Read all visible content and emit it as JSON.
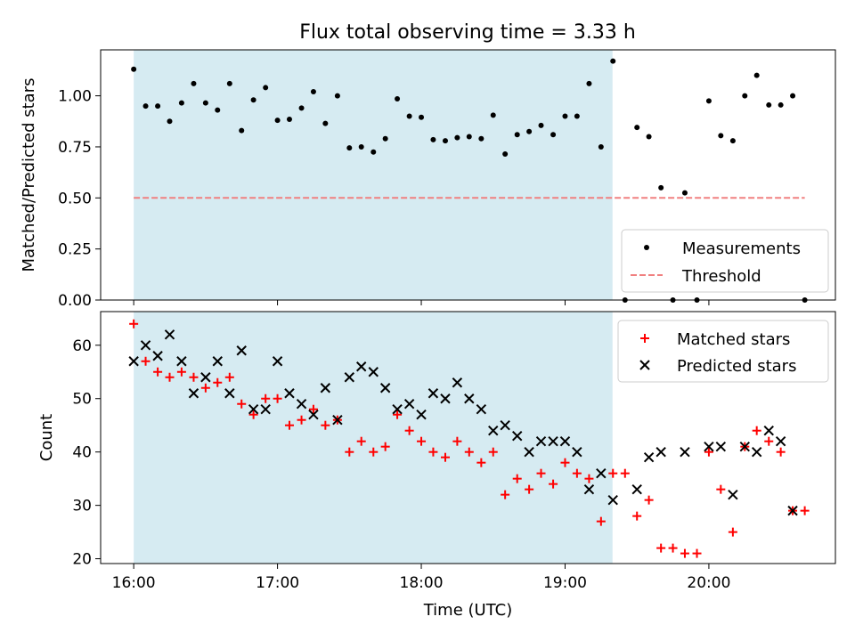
{
  "chart_data": [
    {
      "type": "scatter",
      "title": "Flux total observing time = 3.33 h",
      "xlabel": "",
      "ylabel": "Matched/Predicted stars",
      "xlim": [
        15.77,
        20.88
      ],
      "ylim": [
        0.0,
        1.225
      ],
      "yticks": [
        0.0,
        0.25,
        0.5,
        0.75,
        1.0
      ],
      "ytick_labels": [
        "0.00",
        "0.25",
        "0.50",
        "0.75",
        "1.00"
      ],
      "shaded_region": {
        "x0": 16.0,
        "x1": 19.33,
        "color": "#add8e6"
      },
      "legend": {
        "position": "lower right",
        "entries": [
          {
            "label": "Measurements",
            "style": "dot",
            "color": "#000000"
          },
          {
            "label": "Threshold",
            "style": "dashed-line",
            "color": "#f08080"
          }
        ]
      },
      "series": [
        {
          "name": "Measurements",
          "color": "#000000",
          "marker": "dot",
          "x": [
            16.0,
            16.083,
            16.167,
            16.25,
            16.333,
            16.417,
            16.5,
            16.583,
            16.667,
            16.75,
            16.833,
            16.917,
            17.0,
            17.083,
            17.167,
            17.25,
            17.333,
            17.417,
            17.5,
            17.583,
            17.667,
            17.75,
            17.833,
            17.917,
            18.0,
            18.083,
            18.167,
            18.25,
            18.333,
            18.417,
            18.5,
            18.583,
            18.667,
            18.75,
            18.833,
            18.917,
            19.0,
            19.083,
            19.167,
            19.25,
            19.333,
            19.417,
            19.5,
            19.583,
            19.667,
            19.75,
            19.833,
            19.917,
            20.0,
            20.083,
            20.167,
            20.25,
            20.333,
            20.417,
            20.5,
            20.583,
            20.667
          ],
          "y": [
            1.13,
            0.95,
            0.95,
            0.875,
            0.965,
            1.06,
            0.965,
            0.93,
            1.06,
            0.83,
            0.98,
            1.04,
            0.88,
            0.885,
            0.94,
            1.02,
            0.865,
            1.0,
            0.745,
            0.75,
            0.725,
            0.79,
            0.985,
            0.9,
            0.895,
            0.785,
            0.78,
            0.795,
            0.8,
            0.79,
            0.905,
            0.715,
            0.81,
            0.825,
            0.855,
            0.81,
            0.9,
            0.9,
            1.06,
            0.75,
            1.17,
            0.0,
            0.845,
            0.8,
            0.55,
            0.0,
            0.525,
            0.0,
            0.975,
            0.805,
            0.78,
            1.0,
            1.1,
            0.955,
            0.955,
            1.0,
            0.0
          ]
        },
        {
          "name": "Threshold",
          "color": "#f08080",
          "style": "dashed",
          "x": [
            16.0,
            20.667
          ],
          "y": [
            0.5,
            0.5
          ]
        }
      ]
    },
    {
      "type": "scatter",
      "title": "",
      "xlabel": "Time (UTC)",
      "ylabel": "Count",
      "xlim": [
        15.77,
        20.88
      ],
      "ylim": [
        19.1,
        66.3
      ],
      "yticks": [
        20,
        30,
        40,
        50,
        60
      ],
      "ytick_labels": [
        "20",
        "30",
        "40",
        "50",
        "60"
      ],
      "xticks": [
        16,
        17,
        18,
        19,
        20
      ],
      "xtick_labels": [
        "16:00",
        "17:00",
        "18:00",
        "19:00",
        "20:00"
      ],
      "shaded_region": {
        "x0": 16.0,
        "x1": 19.33,
        "color": "#add8e6"
      },
      "legend": {
        "position": "upper right",
        "entries": [
          {
            "label": "Matched stars",
            "style": "plus",
            "color": "#ff0000"
          },
          {
            "label": "Predicted stars",
            "style": "x",
            "color": "#000000"
          }
        ]
      },
      "series": [
        {
          "name": "Matched stars",
          "color": "#ff0000",
          "marker": "plus",
          "x": [
            16.0,
            16.083,
            16.167,
            16.25,
            16.333,
            16.417,
            16.5,
            16.583,
            16.667,
            16.75,
            16.833,
            16.917,
            17.0,
            17.083,
            17.167,
            17.25,
            17.333,
            17.417,
            17.5,
            17.583,
            17.667,
            17.75,
            17.833,
            17.917,
            18.0,
            18.083,
            18.167,
            18.25,
            18.333,
            18.417,
            18.5,
            18.583,
            18.667,
            18.75,
            18.833,
            18.917,
            19.0,
            19.083,
            19.167,
            19.25,
            19.333,
            19.417,
            19.5,
            19.583,
            19.667,
            19.75,
            19.833,
            19.917,
            20.0,
            20.083,
            20.167,
            20.25,
            20.333,
            20.417,
            20.5,
            20.583,
            20.667
          ],
          "y": [
            64,
            57,
            55,
            54,
            55,
            54,
            52,
            53,
            54,
            49,
            47,
            50,
            50,
            45,
            46,
            48,
            45,
            46,
            40,
            42,
            40,
            41,
            47,
            44,
            42,
            40,
            39,
            42,
            40,
            38,
            40,
            32,
            35,
            33,
            36,
            34,
            38,
            36,
            35,
            27,
            36,
            36,
            28,
            31,
            22,
            22,
            21,
            21,
            40,
            33,
            25,
            41,
            44,
            42,
            40,
            29,
            29
          ]
        },
        {
          "name": "Predicted stars",
          "color": "#000000",
          "marker": "x",
          "x": [
            16.0,
            16.083,
            16.167,
            16.25,
            16.333,
            16.417,
            16.5,
            16.583,
            16.667,
            16.75,
            16.833,
            16.917,
            17.0,
            17.083,
            17.167,
            17.25,
            17.333,
            17.417,
            17.5,
            17.583,
            17.667,
            17.75,
            17.833,
            17.917,
            18.0,
            18.083,
            18.167,
            18.25,
            18.333,
            18.417,
            18.5,
            18.583,
            18.667,
            18.75,
            18.833,
            18.917,
            19.0,
            19.083,
            19.167,
            19.25,
            19.333,
            19.5,
            19.583,
            19.667,
            19.833,
            20.0,
            20.083,
            20.167,
            20.25,
            20.333,
            20.417,
            20.5,
            20.583
          ],
          "y": [
            57,
            60,
            58,
            62,
            57,
            51,
            54,
            57,
            51,
            59,
            48,
            48,
            57,
            51,
            49,
            47,
            52,
            46,
            54,
            56,
            55,
            52,
            48,
            49,
            47,
            51,
            50,
            53,
            50,
            48,
            44,
            45,
            43,
            40,
            42,
            42,
            42,
            40,
            33,
            36,
            31,
            33,
            39,
            40,
            40,
            41,
            41,
            32,
            41,
            40,
            44,
            42,
            29
          ]
        }
      ]
    }
  ]
}
